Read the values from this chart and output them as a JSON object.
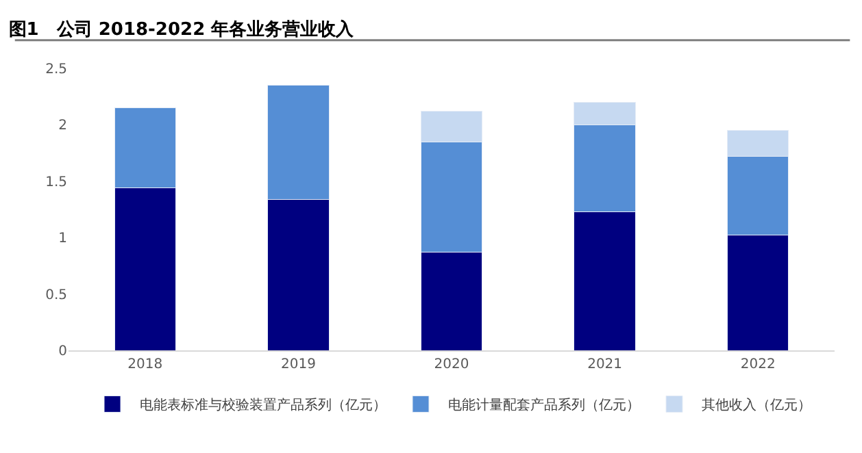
{
  "chart_data": {
    "type": "bar",
    "title": "图1　公司 2018-2022 年各业务营业收入",
    "stacked": true,
    "categories": [
      "2018",
      "2019",
      "2020",
      "2021",
      "2022"
    ],
    "series": [
      {
        "name": "电能表标准与校验装置产品系列（亿元）",
        "color": "#000080",
        "values": [
          1.44,
          1.34,
          0.87,
          1.23,
          1.02
        ]
      },
      {
        "name": "电能计量配套产品系列（亿元）",
        "color": "#558ed5",
        "values": [
          0.71,
          1.01,
          0.98,
          0.77,
          0.7
        ]
      },
      {
        "name": "其他收入（亿元）",
        "color": "#c6d9f1",
        "values": [
          null,
          null,
          0.27,
          0.2,
          0.23
        ]
      }
    ],
    "ylim": [
      0,
      2.5
    ],
    "yticks": [
      0,
      0.5,
      1,
      1.5,
      2,
      2.5
    ],
    "legend": "bottom"
  }
}
